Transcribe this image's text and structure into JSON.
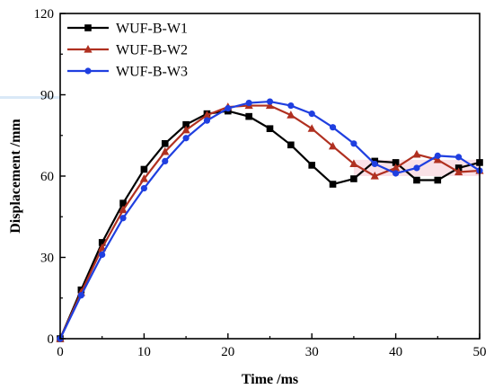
{
  "chart_data": {
    "type": "line",
    "title": "",
    "xlabel": "Time /ms",
    "ylabel": "Displacement /mm",
    "xlim": [
      0,
      50
    ],
    "ylim": [
      0,
      120
    ],
    "xticks": [
      0,
      10,
      20,
      30,
      40,
      50
    ],
    "yticks": [
      0,
      30,
      60,
      90,
      120
    ],
    "grid": false,
    "legend_position": "top-left",
    "series": [
      {
        "name": "WUF-B-W1",
        "color": "#000000",
        "marker": "square",
        "x": [
          0,
          2.5,
          5,
          7.5,
          10,
          12.5,
          15,
          17.5,
          20,
          22.5,
          25,
          27.5,
          30,
          32.5,
          35,
          37.5,
          40,
          42.5,
          45,
          47.5,
          50
        ],
        "y": [
          0,
          18,
          35.5,
          50,
          62.5,
          72,
          79,
          83,
          84,
          82,
          77.5,
          71.5,
          64,
          57,
          59,
          65.5,
          65,
          58.5,
          58.5,
          63,
          65
        ]
      },
      {
        "name": "WUF-B-W2",
        "color": "#b03020",
        "marker": "triangle",
        "x": [
          0,
          2.5,
          5,
          7.5,
          10,
          12.5,
          15,
          17.5,
          20,
          22.5,
          25,
          27.5,
          30,
          32.5,
          35,
          37.5,
          40,
          42.5,
          45,
          47.5,
          50
        ],
        "y": [
          0,
          17,
          33.5,
          47.5,
          59,
          69,
          77,
          82.5,
          85.5,
          86,
          86,
          82.5,
          77.5,
          71,
          64.5,
          60,
          63,
          68,
          66,
          61.5,
          62
        ]
      },
      {
        "name": "WUF-B-W3",
        "color": "#1f3fe0",
        "marker": "circle",
        "x": [
          0,
          2.5,
          5,
          7.5,
          10,
          12.5,
          15,
          17.5,
          20,
          22.5,
          25,
          27.5,
          30,
          32.5,
          35,
          37.5,
          40,
          42.5,
          45,
          47.5,
          50
        ],
        "y": [
          0,
          16,
          31,
          44.5,
          55.5,
          65.5,
          74,
          80.5,
          85,
          87,
          87.5,
          86,
          83,
          78,
          72,
          64.5,
          61,
          63,
          67.5,
          67,
          62
        ]
      }
    ]
  }
}
